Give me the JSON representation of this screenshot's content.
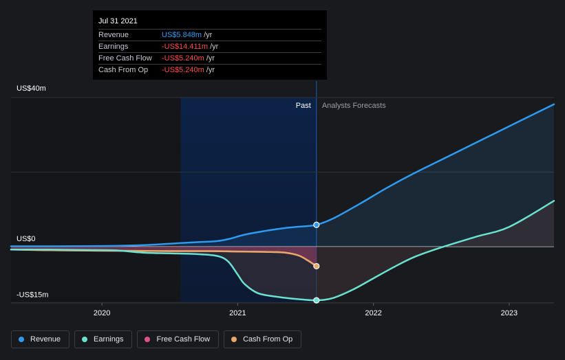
{
  "tooltip": {
    "date": "Jul 31 2021",
    "rows": [
      {
        "label": "Revenue",
        "value": "US$5.848m",
        "unit": "/yr",
        "color": "#2e9bf0"
      },
      {
        "label": "Earnings",
        "value": "-US$14.411m",
        "unit": "/yr",
        "color": "#ff4d4d"
      },
      {
        "label": "Free Cash Flow",
        "value": "-US$5.240m",
        "unit": "/yr",
        "color": "#ff4d4d"
      },
      {
        "label": "Cash From Op",
        "value": "-US$5.240m",
        "unit": "/yr",
        "color": "#ff4d4d"
      }
    ]
  },
  "legend": [
    {
      "label": "Revenue",
      "color": "#2e9bf0"
    },
    {
      "label": "Earnings",
      "color": "#6be2cf"
    },
    {
      "label": "Free Cash Flow",
      "color": "#e0508a"
    },
    {
      "label": "Cash From Op",
      "color": "#e8a868"
    }
  ],
  "chart_data": {
    "type": "line",
    "title": "",
    "xlabel": "",
    "ylabel": "",
    "ylim": [
      -15,
      40
    ],
    "xlim": [
      2019.33,
      2023.33
    ],
    "y_tick_labels": [
      "US$40m",
      "US$0",
      "-US$15m"
    ],
    "y_ticks": [
      40,
      0,
      -15
    ],
    "x_ticks": [
      2020,
      2021,
      2022,
      2023
    ],
    "x_tick_labels": [
      "2020",
      "2021",
      "2022",
      "2023"
    ],
    "past_label": "Past",
    "forecast_label": "Analysts Forecasts",
    "past_end": 2021.58,
    "highlight_start": 2020.58,
    "series": [
      {
        "name": "Revenue",
        "color": "#2e9bf0",
        "x": [
          2019.33,
          2019.6,
          2019.9,
          2020.1,
          2020.3,
          2020.5,
          2020.7,
          2020.85,
          2020.95,
          2021.05,
          2021.2,
          2021.35,
          2021.5,
          2021.58,
          2021.7,
          2021.9,
          2022.1,
          2022.3,
          2022.55,
          2022.8,
          2023.05,
          2023.33
        ],
        "y": [
          0.1,
          0.1,
          0.15,
          0.2,
          0.4,
          0.8,
          1.2,
          1.5,
          2.2,
          3.2,
          4.2,
          5.0,
          5.5,
          5.85,
          7.5,
          11.5,
          15.8,
          19.7,
          24.2,
          28.7,
          33.2,
          38.2
        ]
      },
      {
        "name": "Earnings",
        "color": "#6be2cf",
        "x": [
          2019.33,
          2019.6,
          2019.9,
          2020.1,
          2020.3,
          2020.5,
          2020.7,
          2020.85,
          2020.93,
          2021.0,
          2021.05,
          2021.15,
          2021.3,
          2021.45,
          2021.58,
          2021.7,
          2021.85,
          2022.0,
          2022.15,
          2022.3,
          2022.5,
          2022.75,
          2023.0,
          2023.33
        ],
        "y": [
          -0.8,
          -0.8,
          -0.9,
          -1.0,
          -1.6,
          -1.8,
          -2.0,
          -2.5,
          -4.0,
          -7.5,
          -10.0,
          -12.5,
          -13.5,
          -14.1,
          -14.4,
          -13.8,
          -11.5,
          -8.5,
          -5.5,
          -2.8,
          -0.2,
          2.6,
          5.3,
          12.3
        ]
      },
      {
        "name": "Free Cash Flow",
        "color": "#e0508a",
        "x": [
          2019.33,
          2019.7,
          2020.1,
          2020.5,
          2020.8,
          2021.0,
          2021.2,
          2021.35,
          2021.45,
          2021.52,
          2021.58
        ],
        "y": [
          -0.8,
          -1.0,
          -1.1,
          -1.2,
          -1.2,
          -1.3,
          -1.4,
          -1.6,
          -2.4,
          -3.8,
          -5.24
        ]
      },
      {
        "name": "Cash From Op",
        "color": "#e8a868",
        "x": [
          2019.33,
          2019.7,
          2020.1,
          2020.5,
          2020.8,
          2021.0,
          2021.2,
          2021.35,
          2021.45,
          2021.52,
          2021.58
        ],
        "y": [
          -0.8,
          -1.0,
          -1.1,
          -1.2,
          -1.2,
          -1.3,
          -1.4,
          -1.6,
          -2.4,
          -3.8,
          -5.24
        ]
      }
    ]
  }
}
